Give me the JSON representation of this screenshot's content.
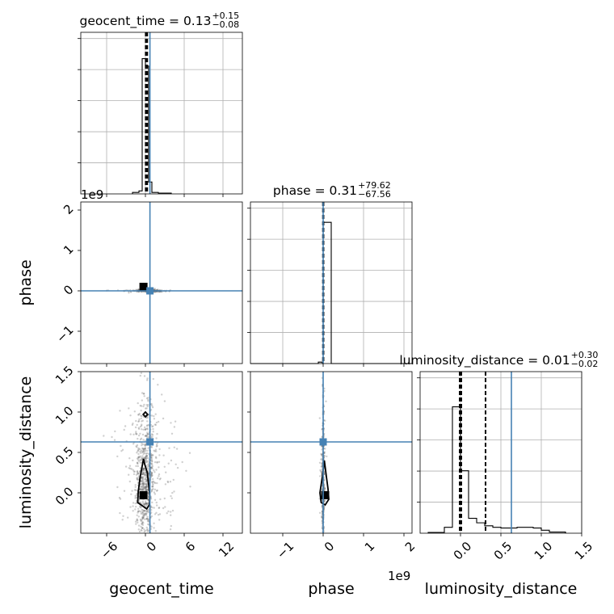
{
  "chart_data": {
    "type": "corner",
    "parameters": [
      "geocent_time",
      "phase",
      "luminosity_distance"
    ],
    "axis_labels": [
      "geocent_time",
      "phase",
      "luminosity_distance"
    ],
    "ranges": {
      "geocent_time": [
        -10,
        15
      ],
      "phase": [
        -1800000000.0,
        2200000000.0
      ],
      "luminosity_distance": [
        -0.5,
        1.5
      ]
    },
    "ticks": {
      "geocent_time": {
        "values": [
          -6,
          0,
          6,
          12
        ],
        "labels": [
          "−6",
          "0",
          "6",
          "12"
        ]
      },
      "phase": {
        "values": [
          -1000000000.0,
          0,
          1000000000.0,
          2000000000.0
        ],
        "labels": [
          "−1",
          "0",
          "1",
          "2"
        ]
      },
      "luminosity_distance": {
        "values": [
          0,
          0.5,
          1.0,
          1.5
        ],
        "labels": [
          "0.0",
          "0.5",
          "1.0",
          "1.5"
        ]
      }
    },
    "offset_label": "1e9",
    "grid": true,
    "truths": {
      "geocent_time": 0.7,
      "phase": 0.0,
      "luminosity_distance": 0.63
    },
    "truth_color": "#4682b4",
    "diagonal": [
      {
        "parameter": "geocent_time",
        "title": {
          "main": "geocent_time = 0.13",
          "sup": "+0.15",
          "sub": "−0.08"
        },
        "quantile_lines": [
          0.05,
          0.13,
          0.28
        ],
        "bin_edges": [
          -2.0,
          -1.0,
          -0.5,
          0.0,
          0.5,
          1.0,
          2.0,
          4.0
        ],
        "counts": [
          0.01,
          0.02,
          0.91,
          0.86,
          0.08,
          0.01,
          0.005
        ],
        "ymax": 1.0
      },
      {
        "parameter": "phase",
        "title": {
          "main": "phase = 0.31",
          "sup": "+79.62",
          "sub": "−67.56"
        },
        "quantile_lines": [
          -5000000.0,
          2000000.0,
          8000000.0
        ],
        "bin_edges": [
          -1800000000.0,
          -120000000.0,
          -20000000.0,
          0.0,
          200000000.0,
          2200000000.0
        ],
        "counts": [
          0.0,
          0.01,
          0.0,
          0.95,
          0.0
        ],
        "ymax": 1.0
      },
      {
        "parameter": "luminosity_distance",
        "title": {
          "main": "luminosity_distance = 0.01",
          "sup": "+0.30",
          "sub": "−0.02"
        },
        "quantile_lines": [
          -0.01,
          0.01,
          0.31
        ],
        "bin_edges": [
          -0.4,
          -0.2,
          -0.1,
          0.0,
          0.1,
          0.2,
          0.3,
          0.4,
          0.5,
          0.7,
          0.9,
          1.0,
          1.1,
          1.3
        ],
        "counts": [
          0.005,
          0.04,
          0.85,
          0.42,
          0.1,
          0.07,
          0.05,
          0.04,
          0.035,
          0.04,
          0.035,
          0.02,
          0.008
        ],
        "ymax": 1.0
      }
    ],
    "panels_2d": [
      {
        "x": "geocent_time",
        "y": "phase",
        "mode_marker": {
          "x": -0.3,
          "y": 100000000.0
        },
        "points_center": {
          "x": 0.4,
          "y": 0.0
        },
        "points_spread": {
          "x": 1.6,
          "y": 15000000.0
        }
      },
      {
        "x": "geocent_time",
        "y": "luminosity_distance",
        "mode_marker": {
          "x": -0.3,
          "y": -0.03
        },
        "points_center": {
          "x": 0.0,
          "y": 0.55
        },
        "points_spread": {
          "x": 1.3,
          "y": 0.45
        },
        "contour": [
          [
            0,
            1.0
          ],
          [
            0.35,
            0.97
          ],
          [
            0,
            0.94
          ],
          [
            -0.35,
            0.97
          ],
          [
            0,
            1.0
          ]
        ],
        "contour_outer": [
          [
            -0.3,
            0.42
          ],
          [
            -0.1,
            0.35
          ],
          [
            0.3,
            0.25
          ],
          [
            0.5,
            0.1
          ],
          [
            0.7,
            -0.05
          ],
          [
            0.6,
            -0.15
          ],
          [
            0.2,
            -0.2
          ],
          [
            -0.3,
            -0.17
          ],
          [
            -1.2,
            -0.12
          ],
          [
            -1.1,
            0.02
          ],
          [
            -0.8,
            0.2
          ],
          [
            -0.3,
            0.42
          ]
        ]
      },
      {
        "x": "phase",
        "y": "luminosity_distance",
        "mode_marker": {
          "x": 50000000.0,
          "y": -0.03
        },
        "points_center": {
          "x": 0.0,
          "y": 0.5
        },
        "points_spread": {
          "x": 20000000.0,
          "y": 0.4
        },
        "contour_outer": [
          [
            30000000.0,
            0.4
          ],
          [
            80000000.0,
            0.2
          ],
          [
            120000000.0,
            0.05
          ],
          [
            140000000.0,
            -0.08
          ],
          [
            50000000.0,
            -0.15
          ],
          [
            -50000000.0,
            -0.12
          ],
          [
            -80000000.0,
            0.0
          ],
          [
            -20000000.0,
            0.2
          ],
          [
            30000000.0,
            0.4
          ]
        ]
      }
    ]
  }
}
